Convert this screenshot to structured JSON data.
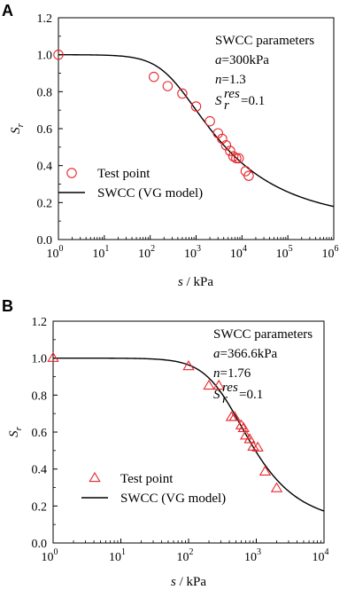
{
  "chart_data": [
    {
      "type": "scatter",
      "panel": "A",
      "xscale": "log",
      "xlim": [
        1,
        1000000
      ],
      "ylim": [
        0.0,
        1.2
      ],
      "x_ticks": [
        {
          "base": "10",
          "exp": "0"
        },
        {
          "base": "10",
          "exp": "1"
        },
        {
          "base": "10",
          "exp": "2"
        },
        {
          "base": "10",
          "exp": "3"
        },
        {
          "base": "10",
          "exp": "4"
        },
        {
          "base": "10",
          "exp": "5"
        },
        {
          "base": "10",
          "exp": "6"
        }
      ],
      "y_ticks": [
        "0.0",
        "0.2",
        "0.4",
        "0.6",
        "0.8",
        "1.0",
        "1.2"
      ],
      "xlabel_var": "s",
      "xlabel_unit": " / kPa",
      "ylabel_var": "S",
      "ylabel_sub": "r",
      "marker": "circle",
      "color": "#e8262b",
      "line_color": "#000000",
      "annotation": {
        "title": "SWCC parameters",
        "a_var": "a",
        "a_val": "=300kPa",
        "n_var": "n",
        "n_val": "=1.3",
        "s_var": "S",
        "s_sub": "r",
        "s_sup": "res",
        "s_val": "=0.1"
      },
      "legend": [
        {
          "label": "Test point",
          "kind": "marker"
        },
        {
          "label": "SWCC (VG model)",
          "kind": "line"
        }
      ],
      "model": {
        "a": 300,
        "n": 1.3,
        "sres": 0.1
      },
      "points": [
        {
          "x": 1,
          "y": 1.0
        },
        {
          "x": 120,
          "y": 0.88
        },
        {
          "x": 240,
          "y": 0.83
        },
        {
          "x": 500,
          "y": 0.79
        },
        {
          "x": 1000,
          "y": 0.72
        },
        {
          "x": 2000,
          "y": 0.64
        },
        {
          "x": 3000,
          "y": 0.575
        },
        {
          "x": 3700,
          "y": 0.545
        },
        {
          "x": 4500,
          "y": 0.51
        },
        {
          "x": 5500,
          "y": 0.48
        },
        {
          "x": 6500,
          "y": 0.45
        },
        {
          "x": 7500,
          "y": 0.44
        },
        {
          "x": 8500,
          "y": 0.44
        },
        {
          "x": 12000,
          "y": 0.37
        },
        {
          "x": 14000,
          "y": 0.345
        }
      ]
    },
    {
      "type": "scatter",
      "panel": "B",
      "xscale": "log",
      "xlim": [
        1,
        10000
      ],
      "ylim": [
        0.0,
        1.2
      ],
      "x_ticks": [
        {
          "base": "10",
          "exp": "0"
        },
        {
          "base": "10",
          "exp": "1"
        },
        {
          "base": "10",
          "exp": "2"
        },
        {
          "base": "10",
          "exp": "3"
        },
        {
          "base": "10",
          "exp": "4"
        }
      ],
      "y_ticks": [
        "0.0",
        "0.2",
        "0.4",
        "0.6",
        "0.8",
        "1.0",
        "1.2"
      ],
      "xlabel_var": "s",
      "xlabel_unit": " / kPa",
      "ylabel_var": "S",
      "ylabel_sub": "r",
      "marker": "triangle",
      "color": "#e8262b",
      "line_color": "#000000",
      "annotation": {
        "title": "SWCC parameters",
        "a_var": "a",
        "a_val": "=366.6kPa",
        "n_var": "n",
        "n_val": "=1.76",
        "s_var": "S",
        "s_sub": "r",
        "s_sup": "res",
        "s_val": "=0.1"
      },
      "legend": [
        {
          "label": "Test point",
          "kind": "marker"
        },
        {
          "label": "SWCC (VG model)",
          "kind": "line"
        }
      ],
      "model": {
        "a": 366.6,
        "n": 1.76,
        "sres": 0.1
      },
      "points": [
        {
          "x": 1,
          "y": 1.0
        },
        {
          "x": 100,
          "y": 0.955
        },
        {
          "x": 200,
          "y": 0.85
        },
        {
          "x": 280,
          "y": 0.85
        },
        {
          "x": 430,
          "y": 0.68
        },
        {
          "x": 480,
          "y": 0.68
        },
        {
          "x": 600,
          "y": 0.635
        },
        {
          "x": 650,
          "y": 0.62
        },
        {
          "x": 700,
          "y": 0.58
        },
        {
          "x": 800,
          "y": 0.56
        },
        {
          "x": 900,
          "y": 0.52
        },
        {
          "x": 1050,
          "y": 0.515
        },
        {
          "x": 1350,
          "y": 0.385
        },
        {
          "x": 2000,
          "y": 0.295
        }
      ]
    }
  ]
}
